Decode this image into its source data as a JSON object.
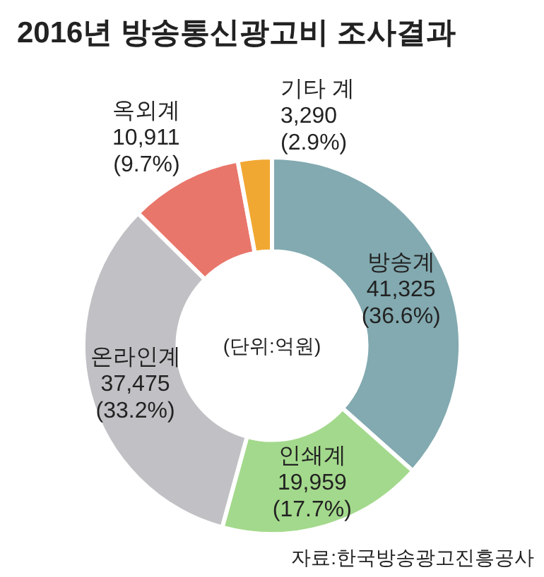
{
  "chart_data": {
    "type": "donut",
    "title": "2016년 방송통신광고비 조사결과",
    "categories": [
      "방송계",
      "인쇄계",
      "온라인계",
      "옥외계",
      "기타 계"
    ],
    "values": [
      41325,
      19959,
      37475,
      10911,
      3290
    ],
    "value_labels": [
      "41,325 (36.6%)",
      "19,959 (17.7%)",
      "37,475 (33.2%)",
      "10,911 (9.7%)",
      "3,290 (2.9%)"
    ],
    "colors": [
      "#82aab0",
      "#a3d98c",
      "#c1c1c5",
      "#e9766b",
      "#f1a832"
    ],
    "annotations": [
      "(단위:억원)",
      "자료:한국방송광고진흥공사"
    ],
    "legend": false
  }
}
